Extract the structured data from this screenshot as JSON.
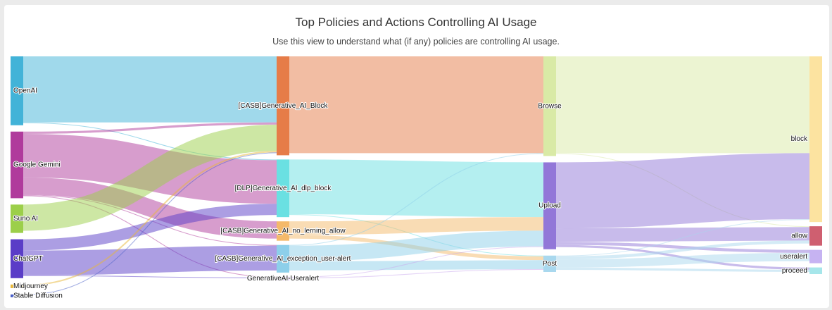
{
  "header": {
    "title": "Top Policies and Actions Controlling AI Usage",
    "subtitle": "Use this view to understand what (if any) policies are controlling AI usage."
  },
  "chart_data": {
    "type": "sankey",
    "nodes": [
      {
        "id": "openai",
        "name": "OpenAI",
        "stage": 0,
        "color": "#42b3d8"
      },
      {
        "id": "gemini",
        "name": "Google Gemini",
        "stage": 0,
        "color": "#b03b9c"
      },
      {
        "id": "suno",
        "name": "Suno AI",
        "stage": 0,
        "color": "#9ccf4a"
      },
      {
        "id": "chatgpt",
        "name": "ChatGPT",
        "stage": 0,
        "color": "#5a3dc7"
      },
      {
        "id": "midjourney",
        "name": "Midjourney",
        "stage": 0,
        "color": "#e8b83a"
      },
      {
        "id": "stable",
        "name": "Stable Diffusion",
        "stage": 0,
        "color": "#4a60c8"
      },
      {
        "id": "casb_block",
        "name": "[CASB]Generative_AI_Block",
        "stage": 1,
        "color": "#e67c48"
      },
      {
        "id": "dlp_block",
        "name": "[DLP]Generative_AI_dlp_block",
        "stage": 1,
        "color": "#6ae0e2"
      },
      {
        "id": "no_learning",
        "name": "[CASB]Generative_AI_no_lerning_allow",
        "stage": 1,
        "color": "#f4b96a"
      },
      {
        "id": "exception",
        "name": "[CASB]Generative_AI_exception_user-alert",
        "stage": 1,
        "color": "#8dcfea"
      },
      {
        "id": "useralert_policy",
        "name": "GenerativeAI-Useralert",
        "stage": 1,
        "color": "#c9a8ee"
      },
      {
        "id": "browse",
        "name": "Browse",
        "stage": 2,
        "color": "#d9eaa6"
      },
      {
        "id": "upload",
        "name": "Upload",
        "stage": 2,
        "color": "#9277d8"
      },
      {
        "id": "post",
        "name": "Post",
        "stage": 2,
        "color": "#a9d8ee"
      },
      {
        "id": "block",
        "name": "block",
        "stage": 3,
        "color": "#fce3a0"
      },
      {
        "id": "allow",
        "name": "allow",
        "stage": 3,
        "color": "#cf5f70"
      },
      {
        "id": "useralert",
        "name": "useralert",
        "stage": 3,
        "color": "#c6b3f2"
      },
      {
        "id": "proceed",
        "name": "proceed",
        "stage": 3,
        "color": "#a6e6ea"
      }
    ],
    "links": [
      {
        "source": "openai",
        "target": "casb_block",
        "value": 88
      },
      {
        "source": "openai",
        "target": "dlp_block",
        "value": 1
      },
      {
        "source": "gemini",
        "target": "casb_block",
        "value": 3
      },
      {
        "source": "gemini",
        "target": "dlp_block",
        "value": 58
      },
      {
        "source": "gemini",
        "target": "no_learning",
        "value": 23
      },
      {
        "source": "gemini",
        "target": "exception",
        "value": 1
      },
      {
        "source": "gemini",
        "target": "useralert_policy",
        "value": 1
      },
      {
        "source": "suno",
        "target": "casb_block",
        "value": 35
      },
      {
        "source": "chatgpt",
        "target": "dlp_block",
        "value": 15
      },
      {
        "source": "chatgpt",
        "target": "exception",
        "value": 33
      },
      {
        "source": "chatgpt",
        "target": "useralert_policy",
        "value": 1
      },
      {
        "source": "midjourney",
        "target": "casb_block",
        "value": 2
      },
      {
        "source": "stable",
        "target": "casb_block",
        "value": 1
      },
      {
        "source": "casb_block",
        "target": "browse",
        "value": 129
      },
      {
        "source": "dlp_block",
        "target": "upload",
        "value": 73
      },
      {
        "source": "dlp_block",
        "target": "post",
        "value": 1
      },
      {
        "source": "no_learning",
        "target": "upload",
        "value": 18
      },
      {
        "source": "no_learning",
        "target": "post",
        "value": 5
      },
      {
        "source": "exception",
        "target": "browse",
        "value": 1
      },
      {
        "source": "exception",
        "target": "upload",
        "value": 21
      },
      {
        "source": "exception",
        "target": "post",
        "value": 12
      },
      {
        "source": "useralert_policy",
        "target": "upload",
        "value": 1
      },
      {
        "source": "useralert_policy",
        "target": "post",
        "value": 1
      },
      {
        "source": "browse",
        "target": "block",
        "value": 129
      },
      {
        "source": "browse",
        "target": "allow",
        "value": 1
      },
      {
        "source": "upload",
        "target": "block",
        "value": 88
      },
      {
        "source": "upload",
        "target": "allow",
        "value": 18
      },
      {
        "source": "upload",
        "target": "useralert",
        "value": 4
      },
      {
        "source": "upload",
        "target": "proceed",
        "value": 3
      },
      {
        "source": "post",
        "target": "block",
        "value": 1
      },
      {
        "source": "post",
        "target": "allow",
        "value": 4
      },
      {
        "source": "post",
        "target": "useralert",
        "value": 11
      },
      {
        "source": "post",
        "target": "proceed",
        "value": 3
      }
    ]
  }
}
